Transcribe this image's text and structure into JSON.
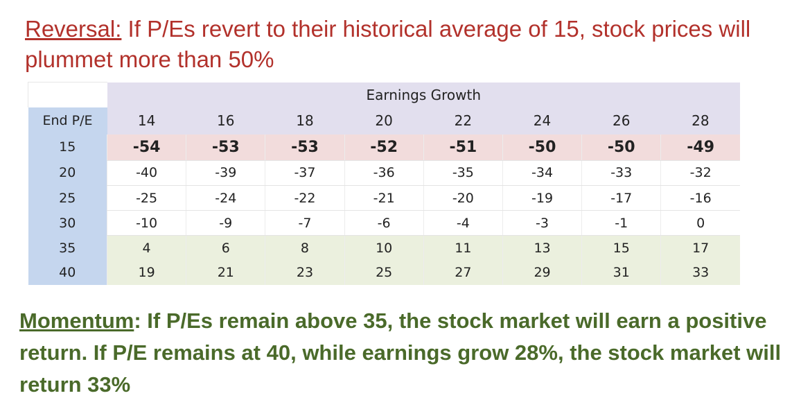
{
  "title": {
    "keyword": "Reversal:",
    "text": " If P/Es revert to their historical average of 15, stock prices will plummet more than 50%"
  },
  "chart_data": {
    "type": "table",
    "header_span": "Earnings Growth",
    "row_header": "End P/E",
    "columns": [
      "14",
      "16",
      "18",
      "20",
      "22",
      "24",
      "26",
      "28"
    ],
    "rows": [
      {
        "label": "15",
        "values": [
          "-54",
          "-53",
          "-53",
          "-52",
          "-51",
          "-50",
          "-50",
          "-49"
        ],
        "style": "pink-bold"
      },
      {
        "label": "20",
        "values": [
          "-40",
          "-39",
          "-37",
          "-36",
          "-35",
          "-34",
          "-33",
          "-32"
        ],
        "style": "white"
      },
      {
        "label": "25",
        "values": [
          "-25",
          "-24",
          "-22",
          "-21",
          "-20",
          "-19",
          "-17",
          "-16"
        ],
        "style": "white"
      },
      {
        "label": "30",
        "values": [
          "-10",
          "-9",
          "-7",
          "-6",
          "-4",
          "-3",
          "-1",
          "0"
        ],
        "style": "white"
      },
      {
        "label": "35",
        "values": [
          "4",
          "6",
          "8",
          "10",
          "11",
          "13",
          "15",
          "17"
        ],
        "style": "green"
      },
      {
        "label": "40",
        "values": [
          "19",
          "21",
          "23",
          "25",
          "27",
          "29",
          "31",
          "33"
        ],
        "style": "green"
      }
    ]
  },
  "footer": {
    "keyword": "Momentum",
    "text": ": If P/Es remain above 35, the stock market will earn a positive return. If P/E remains at 40, while earnings grow 28%, the stock market will return 33%"
  },
  "colors": {
    "title_red": "#b2312b",
    "footer_green": "#4a6a2a",
    "header_lavender": "#e2dfee",
    "label_blue": "#c5d6ee",
    "row_pink": "#f2dcdc",
    "row_green": "#ebf0de"
  }
}
